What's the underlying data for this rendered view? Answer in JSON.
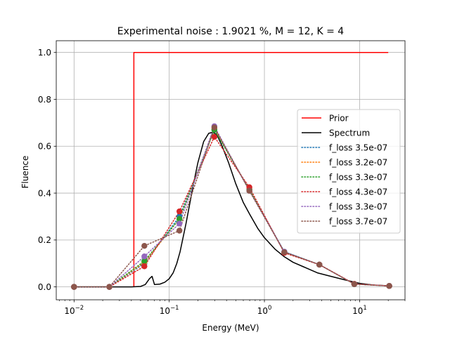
{
  "chart_data": {
    "type": "line",
    "title": "Experimental noise : 1.9021 %, M = 12, K = 4",
    "xlabel": "Energy (MeV)",
    "ylabel": "Fluence",
    "xscale": "log",
    "xlim": [
      0.0065,
      30
    ],
    "ylim": [
      -0.055,
      1.05
    ],
    "grid": true,
    "legend_position": "center-right",
    "x_ticks": [
      {
        "value": 0.01,
        "base": "10",
        "exp": "−2"
      },
      {
        "value": 0.1,
        "base": "10",
        "exp": "−1"
      },
      {
        "value": 1,
        "base": "10",
        "exp": "0"
      },
      {
        "value": 10,
        "base": "10",
        "exp": "1"
      }
    ],
    "y_ticks": [
      {
        "value": 0.0,
        "label": "0.0"
      },
      {
        "value": 0.2,
        "label": "0.2"
      },
      {
        "value": 0.4,
        "label": "0.4"
      },
      {
        "value": 0.6,
        "label": "0.6"
      },
      {
        "value": 0.8,
        "label": "0.8"
      },
      {
        "value": 1.0,
        "label": "1.0"
      }
    ],
    "prior": {
      "name": "Prior",
      "color": "#ff0000",
      "style": "solid",
      "x": [
        0.0425,
        0.0425,
        20
      ],
      "y": [
        0.0,
        1.0,
        1.0
      ]
    },
    "spectrum": {
      "name": "Spectrum",
      "color": "#000000",
      "style": "solid",
      "x": [
        0.01,
        0.02,
        0.04,
        0.05,
        0.056,
        0.062,
        0.066,
        0.07,
        0.08,
        0.09,
        0.1,
        0.11,
        0.12,
        0.13,
        0.15,
        0.18,
        0.2,
        0.23,
        0.26,
        0.29,
        0.32,
        0.36,
        0.42,
        0.5,
        0.6,
        0.7,
        0.85,
        1.0,
        1.3,
        1.6,
        2.0,
        2.6,
        3.6,
        5.0,
        7.0,
        10.0,
        14.0,
        20.0
      ],
      "y": [
        0.0,
        0.0,
        0.0,
        0.002,
        0.01,
        0.035,
        0.045,
        0.01,
        0.012,
        0.02,
        0.035,
        0.06,
        0.1,
        0.15,
        0.27,
        0.44,
        0.53,
        0.62,
        0.655,
        0.66,
        0.645,
        0.6,
        0.53,
        0.44,
        0.36,
        0.31,
        0.25,
        0.21,
        0.16,
        0.13,
        0.105,
        0.085,
        0.06,
        0.045,
        0.03,
        0.015,
        0.008,
        0.005
      ]
    },
    "series": [
      {
        "name": "f_loss 3.5e-07",
        "color": "#1f77b4",
        "x": [
          0.01,
          0.0235,
          0.0548,
          0.128,
          0.298,
          0.695,
          1.62,
          3.78,
          8.8,
          20.5
        ],
        "y": [
          0.0,
          0.0,
          0.1,
          0.3,
          0.67,
          0.415,
          0.15,
          0.095,
          0.012,
          0.004
        ]
      },
      {
        "name": "f_loss 3.2e-07",
        "color": "#ff7f0e",
        "x": [
          0.01,
          0.0235,
          0.0548,
          0.128,
          0.298,
          0.695,
          1.62,
          3.78,
          8.8,
          20.5
        ],
        "y": [
          0.0,
          0.0,
          0.105,
          0.29,
          0.675,
          0.415,
          0.148,
          0.095,
          0.012,
          0.004
        ]
      },
      {
        "name": "f_loss 3.3e-07",
        "color": "#2ca02c",
        "x": [
          0.01,
          0.0235,
          0.0548,
          0.128,
          0.298,
          0.695,
          1.62,
          3.78,
          8.8,
          20.5
        ],
        "y": [
          0.0,
          0.0,
          0.11,
          0.29,
          0.67,
          0.415,
          0.148,
          0.095,
          0.012,
          0.004
        ]
      },
      {
        "name": "f_loss 4.3e-07",
        "color": "#d62728",
        "x": [
          0.01,
          0.0235,
          0.0548,
          0.128,
          0.298,
          0.695,
          1.62,
          3.78,
          8.8,
          20.5
        ],
        "y": [
          0.0,
          0.0,
          0.088,
          0.322,
          0.64,
          0.425,
          0.145,
          0.095,
          0.013,
          0.004
        ]
      },
      {
        "name": "f_loss 3.3e-07",
        "color": "#9467bd",
        "x": [
          0.01,
          0.0235,
          0.0548,
          0.128,
          0.298,
          0.695,
          1.62,
          3.78,
          8.8,
          20.5
        ],
        "y": [
          0.0,
          0.0,
          0.13,
          0.27,
          0.685,
          0.41,
          0.15,
          0.095,
          0.012,
          0.004
        ]
      },
      {
        "name": "f_loss 3.7e-07",
        "color": "#8c564b",
        "x": [
          0.01,
          0.0235,
          0.0548,
          0.128,
          0.298,
          0.695,
          1.62,
          3.78,
          8.8,
          20.5
        ],
        "y": [
          0.0,
          0.0,
          0.175,
          0.24,
          0.68,
          0.41,
          0.148,
          0.095,
          0.012,
          0.004
        ]
      }
    ]
  }
}
